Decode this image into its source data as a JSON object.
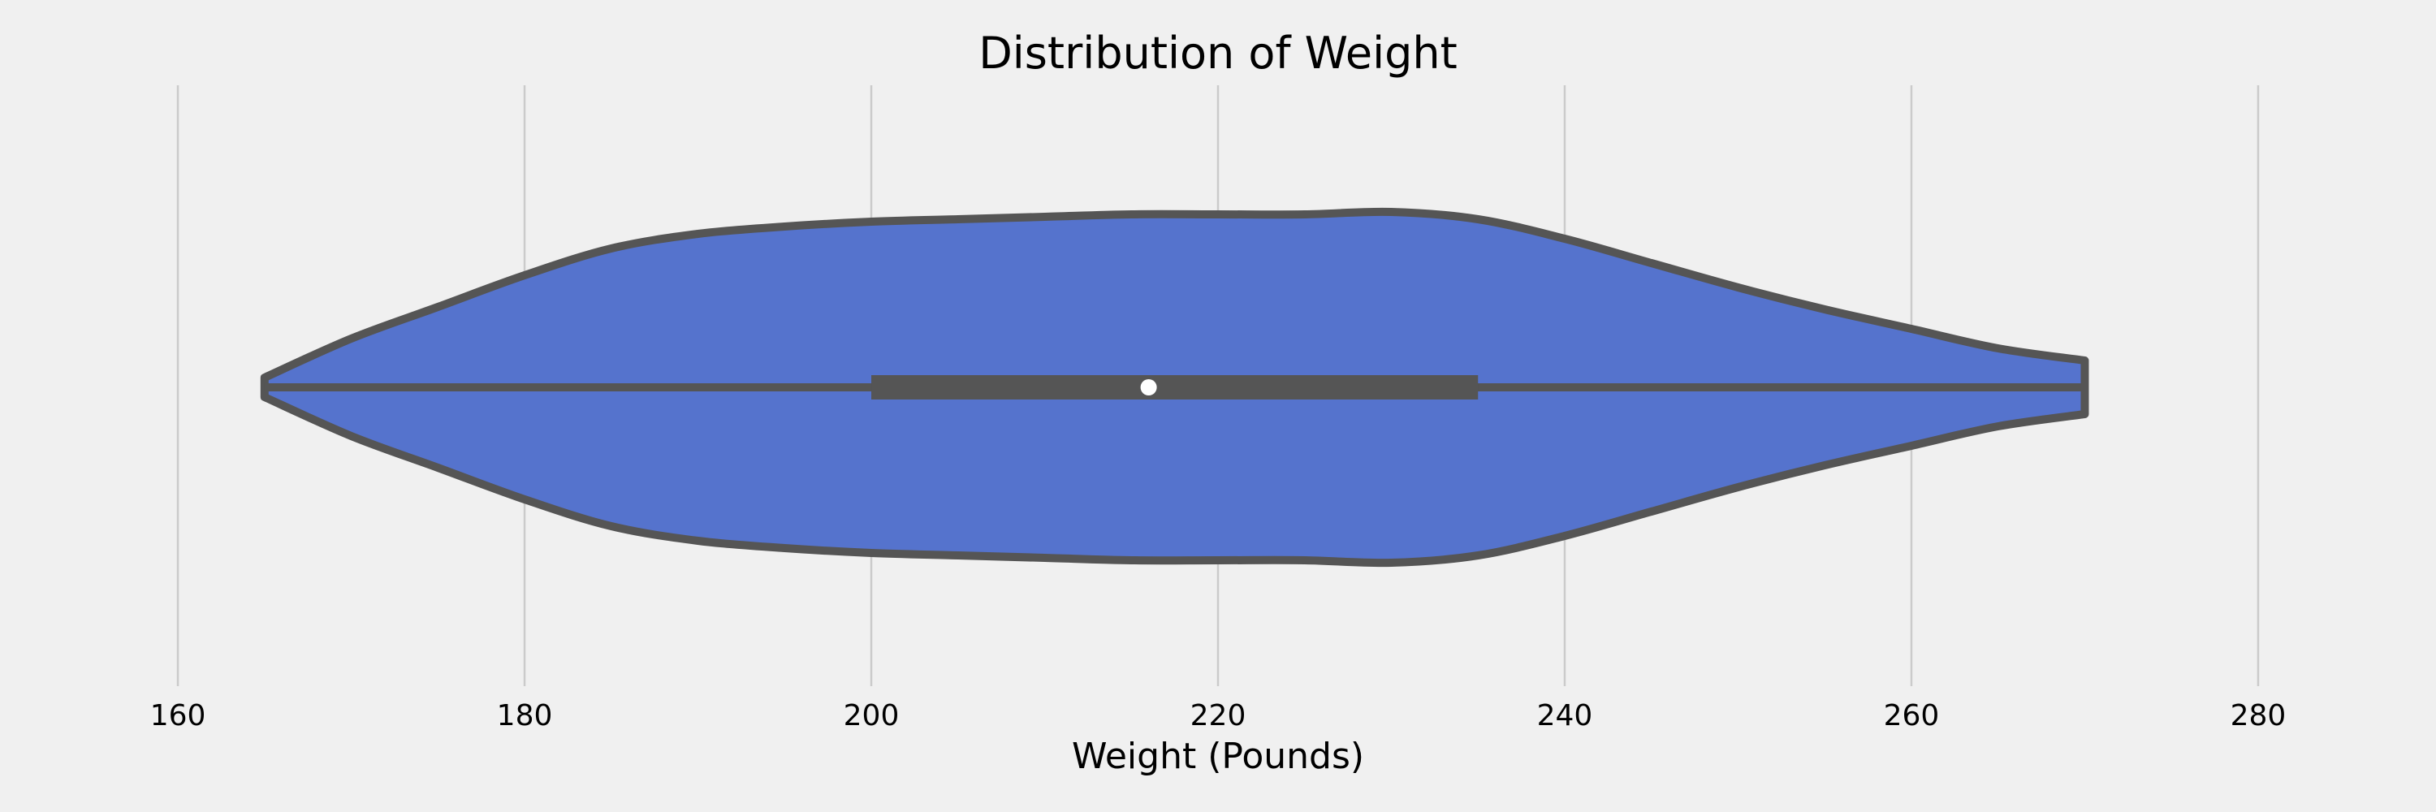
{
  "chart_data": {
    "type": "violin",
    "title": "Distribution of Weight",
    "xlabel": "Weight (Pounds)",
    "ylabel": "",
    "xlim": [
      157,
      283
    ],
    "xticks": [
      160,
      180,
      200,
      220,
      240,
      260,
      280
    ],
    "grid": "vertical",
    "orientation": "horizontal",
    "colors": {
      "background": "#f0f0f0",
      "violin_fill": "#5573cd",
      "violin_edge": "#555555",
      "median_dot": "#ffffff"
    },
    "summary": {
      "min": 165,
      "q1": 200,
      "median": 216,
      "q3": 235,
      "max": 270
    },
    "density_profile": {
      "x": [
        165,
        170,
        175,
        180,
        185,
        190,
        195,
        200,
        205,
        210,
        215,
        220,
        225,
        230,
        235,
        240,
        245,
        250,
        255,
        260,
        265,
        270
      ],
      "half_width": [
        0.04,
        0.2,
        0.33,
        0.46,
        0.57,
        0.63,
        0.66,
        0.68,
        0.69,
        0.7,
        0.71,
        0.71,
        0.71,
        0.72,
        0.69,
        0.61,
        0.51,
        0.41,
        0.32,
        0.24,
        0.16,
        0.11
      ]
    }
  }
}
